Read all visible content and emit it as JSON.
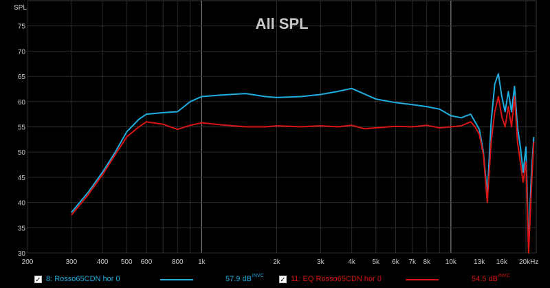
{
  "chart_data": {
    "type": "line",
    "title": "All SPL",
    "ylabel": "SPL",
    "xlabel": "",
    "x_scale": "log",
    "xlim": [
      200,
      22000
    ],
    "ylim": [
      30,
      80
    ],
    "x_ticks": [
      200,
      300,
      400,
      500,
      600,
      800,
      1000,
      2000,
      3000,
      4000,
      5000,
      6000,
      7000,
      8000,
      10000,
      13000,
      16000,
      20000
    ],
    "x_tick_labels": [
      "200",
      "300",
      "400",
      "500",
      "600",
      "800",
      "1k",
      "2k",
      "3k",
      "4k",
      "5k",
      "6k",
      "7k",
      "8k",
      "10k",
      "13k",
      "16k",
      "20kHz"
    ],
    "y_ticks": [
      30,
      35,
      40,
      45,
      50,
      55,
      60,
      65,
      70,
      75
    ],
    "y_tick_labels": [
      "30",
      "35",
      "40",
      "45",
      "50",
      "55",
      "60",
      "65",
      "70",
      "75"
    ],
    "grid": true,
    "series": [
      {
        "name": "8: Rosso65CDN hor 0",
        "color": "#1eaee0",
        "checked": true,
        "legend_value": "57.9 dB",
        "legend_suffix": "INVC",
        "points": [
          [
            300,
            38
          ],
          [
            350,
            42
          ],
          [
            400,
            46
          ],
          [
            450,
            50
          ],
          [
            500,
            54
          ],
          [
            560,
            56.5
          ],
          [
            600,
            57.5
          ],
          [
            700,
            57.8
          ],
          [
            800,
            58
          ],
          [
            900,
            60
          ],
          [
            1000,
            61
          ],
          [
            1200,
            61.3
          ],
          [
            1500,
            61.6
          ],
          [
            1800,
            61
          ],
          [
            2000,
            60.8
          ],
          [
            2500,
            61
          ],
          [
            3000,
            61.4
          ],
          [
            3500,
            62
          ],
          [
            4000,
            62.6
          ],
          [
            4500,
            61.5
          ],
          [
            5000,
            60.5
          ],
          [
            6000,
            59.8
          ],
          [
            7000,
            59.4
          ],
          [
            8000,
            59
          ],
          [
            9000,
            58.5
          ],
          [
            10000,
            57.2
          ],
          [
            11000,
            56.8
          ],
          [
            12000,
            57.5
          ],
          [
            12500,
            56
          ],
          [
            13000,
            54.5
          ],
          [
            13500,
            50
          ],
          [
            14000,
            41.5
          ],
          [
            14500,
            56
          ],
          [
            15000,
            63.5
          ],
          [
            15500,
            65.5
          ],
          [
            16000,
            61
          ],
          [
            16500,
            58
          ],
          [
            17000,
            62
          ],
          [
            17500,
            58
          ],
          [
            18000,
            63
          ],
          [
            18500,
            55
          ],
          [
            19000,
            51
          ],
          [
            19500,
            46
          ],
          [
            20000,
            51
          ],
          [
            20500,
            31
          ],
          [
            21000,
            45
          ],
          [
            21500,
            53
          ]
        ]
      },
      {
        "name": "11: EQ Rosso65CDN hor 0",
        "color": "#d81515",
        "checked": true,
        "legend_value": "54.5 dB",
        "legend_suffix": "INVC",
        "points": [
          [
            300,
            37.5
          ],
          [
            350,
            41.5
          ],
          [
            400,
            45.5
          ],
          [
            450,
            49.5
          ],
          [
            500,
            53
          ],
          [
            560,
            55
          ],
          [
            600,
            56
          ],
          [
            700,
            55.5
          ],
          [
            800,
            54.5
          ],
          [
            900,
            55.3
          ],
          [
            1000,
            55.8
          ],
          [
            1200,
            55.4
          ],
          [
            1500,
            55
          ],
          [
            1800,
            55
          ],
          [
            2000,
            55.2
          ],
          [
            2500,
            55
          ],
          [
            3000,
            55.2
          ],
          [
            3500,
            55
          ],
          [
            4000,
            55.3
          ],
          [
            4500,
            54.6
          ],
          [
            5000,
            54.8
          ],
          [
            6000,
            55.1
          ],
          [
            7000,
            55
          ],
          [
            8000,
            55.3
          ],
          [
            9000,
            54.8
          ],
          [
            10000,
            55
          ],
          [
            11000,
            55.2
          ],
          [
            12000,
            56
          ],
          [
            12500,
            55
          ],
          [
            13000,
            53.5
          ],
          [
            13500,
            49.5
          ],
          [
            14000,
            40
          ],
          [
            14500,
            52
          ],
          [
            15000,
            58
          ],
          [
            15500,
            61
          ],
          [
            16000,
            57
          ],
          [
            16500,
            55
          ],
          [
            17000,
            59
          ],
          [
            17500,
            55
          ],
          [
            18000,
            61
          ],
          [
            18500,
            52
          ],
          [
            19000,
            48
          ],
          [
            19500,
            44
          ],
          [
            20000,
            48
          ],
          [
            20500,
            30
          ],
          [
            21000,
            42
          ],
          [
            21500,
            52
          ]
        ]
      }
    ]
  }
}
